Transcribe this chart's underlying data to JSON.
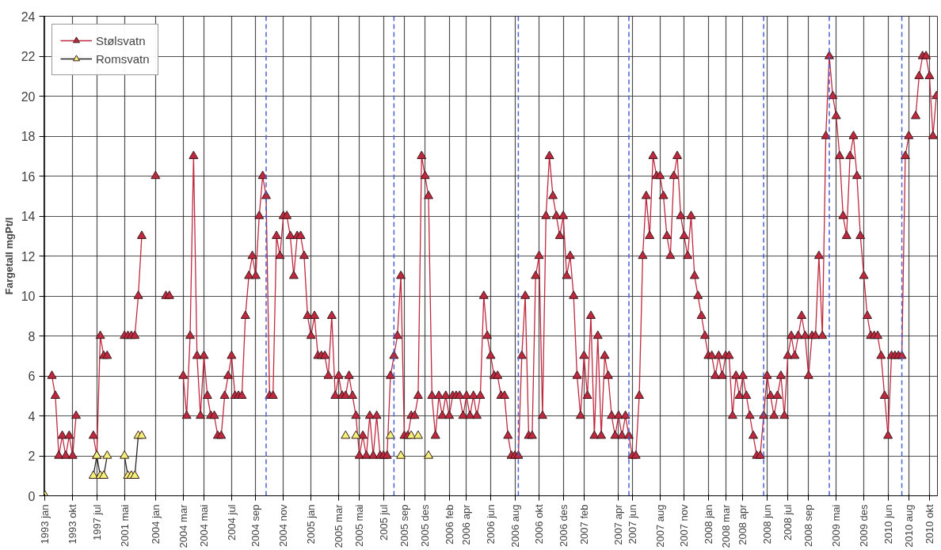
{
  "chart_data": {
    "type": "line",
    "ylabel": "Fargetall mgPt/l",
    "marker": "triangle",
    "grid": true,
    "legend": "top left",
    "ylim": [
      0,
      24
    ],
    "yticks": [
      0,
      2,
      4,
      6,
      8,
      10,
      12,
      14,
      16,
      18,
      20,
      22,
      24
    ],
    "categories": [
      "1993 jan",
      null,
      null,
      null,
      null,
      null,
      null,
      null,
      "1993 okt",
      null,
      null,
      null,
      null,
      null,
      null,
      "1997 jul",
      null,
      null,
      null,
      null,
      null,
      null,
      null,
      "2001 mai",
      null,
      null,
      null,
      null,
      null,
      null,
      null,
      null,
      "2004 jan",
      null,
      null,
      null,
      null,
      null,
      null,
      null,
      "2004 mar",
      null,
      null,
      null,
      null,
      null,
      "2004 mai",
      null,
      null,
      null,
      null,
      null,
      null,
      null,
      "2004 jul",
      null,
      null,
      null,
      null,
      null,
      null,
      "2004 sep",
      null,
      null,
      null,
      null,
      null,
      null,
      null,
      "2004 nov",
      null,
      null,
      null,
      null,
      null,
      null,
      null,
      "2005 jan",
      null,
      null,
      null,
      null,
      null,
      null,
      null,
      "2005 mar",
      null,
      null,
      null,
      null,
      null,
      "2005 mai",
      null,
      null,
      null,
      null,
      null,
      null,
      "2005 jul",
      null,
      null,
      null,
      null,
      null,
      "2005 sep",
      null,
      null,
      null,
      null,
      null,
      "2005 des",
      null,
      null,
      null,
      null,
      null,
      null,
      "2006 feb",
      null,
      null,
      null,
      null,
      "2006 apr",
      null,
      null,
      null,
      null,
      null,
      null,
      "2006 jun",
      null,
      null,
      null,
      null,
      null,
      null,
      "2006 aug",
      null,
      null,
      null,
      null,
      null,
      null,
      "2006 okt",
      null,
      null,
      null,
      null,
      null,
      null,
      "2006 des",
      null,
      null,
      null,
      null,
      null,
      "2007 feb",
      null,
      null,
      null,
      null,
      null,
      null,
      null,
      null,
      null,
      "2007 apr",
      null,
      null,
      null,
      "2007 jun",
      null,
      null,
      null,
      null,
      null,
      null,
      null,
      "2007 aug",
      null,
      null,
      null,
      null,
      null,
      null,
      "2007 nov",
      null,
      null,
      null,
      null,
      null,
      null,
      "2008 jan",
      null,
      null,
      null,
      null,
      "2008 mar",
      null,
      null,
      null,
      null,
      "2008 apr",
      null,
      null,
      null,
      null,
      null,
      null,
      "2008 jun",
      null,
      null,
      null,
      null,
      null,
      "2008 jul",
      null,
      null,
      null,
      null,
      null,
      "2008 sep",
      null,
      null,
      null,
      null,
      null,
      null,
      null,
      "2009 mai",
      null,
      null,
      null,
      null,
      null,
      null,
      null,
      "2009 des",
      null,
      null,
      null,
      null,
      null,
      null,
      "2010 jun",
      null,
      null,
      null,
      null,
      null,
      "2010 aug",
      null,
      null,
      null,
      null,
      null,
      "2010 okt",
      null,
      null
    ],
    "series": [
      {
        "name": "Stølsvatn",
        "color": "#c0283f",
        "values": [
          null,
          null,
          6,
          5,
          2,
          3,
          2,
          3,
          2,
          4,
          null,
          null,
          null,
          null,
          3,
          2,
          8,
          7,
          7,
          null,
          null,
          null,
          null,
          8,
          8,
          8,
          8,
          10,
          13,
          null,
          null,
          null,
          16,
          null,
          null,
          10,
          10,
          null,
          null,
          null,
          6,
          4,
          8,
          17,
          7,
          4,
          7,
          5,
          4,
          4,
          3,
          3,
          5,
          6,
          7,
          5,
          5,
          5,
          9,
          11,
          12,
          11,
          14,
          16,
          15,
          5,
          5,
          13,
          12,
          14,
          14,
          13,
          11,
          13,
          13,
          12,
          9,
          8,
          9,
          7,
          7,
          7,
          6,
          9,
          5,
          6,
          5,
          5,
          6,
          5,
          4,
          2,
          3,
          2,
          4,
          2,
          4,
          2,
          2,
          2,
          6,
          7,
          8,
          11,
          3,
          3,
          4,
          4,
          5,
          17,
          16,
          15,
          5,
          3,
          5,
          4,
          5,
          4,
          5,
          5,
          5,
          4,
          5,
          4,
          5,
          4,
          5,
          10,
          8,
          7,
          6,
          6,
          5,
          5,
          3,
          2,
          2,
          2,
          7,
          10,
          3,
          3,
          11,
          12,
          4,
          14,
          17,
          15,
          14,
          13,
          14,
          11,
          12,
          10,
          6,
          4,
          7,
          5,
          9,
          3,
          8,
          3,
          7,
          6,
          4,
          3,
          4,
          3,
          4,
          3,
          2,
          2,
          5,
          12,
          15,
          13,
          17,
          16,
          16,
          15,
          13,
          12,
          16,
          17,
          14,
          13,
          12,
          14,
          11,
          10,
          9,
          8,
          7,
          7,
          6,
          7,
          6,
          7,
          7,
          4,
          6,
          5,
          6,
          5,
          4,
          3,
          2,
          2,
          4,
          6,
          5,
          4,
          5,
          6,
          4,
          7,
          8,
          7,
          8,
          9,
          8,
          6,
          8,
          8,
          12,
          8,
          18,
          22,
          20,
          19,
          17,
          14,
          13,
          17,
          18,
          16,
          13,
          11,
          9,
          8,
          8,
          8,
          7,
          5,
          3,
          7,
          7,
          7,
          7,
          17,
          18,
          null,
          19,
          21,
          22,
          22,
          21,
          18,
          20
        ]
      },
      {
        "name": "Romsvatn",
        "color": "#f2f27a",
        "values": [
          0,
          null,
          null,
          null,
          null,
          null,
          null,
          null,
          null,
          null,
          null,
          null,
          null,
          null,
          1,
          2,
          1,
          1,
          2,
          null,
          null,
          null,
          null,
          2,
          1,
          1,
          1,
          3,
          3,
          null,
          null,
          null,
          null,
          null,
          null,
          null,
          null,
          null,
          null,
          null,
          null,
          null,
          null,
          null,
          null,
          null,
          null,
          null,
          null,
          null,
          null,
          null,
          null,
          null,
          null,
          null,
          null,
          null,
          null,
          null,
          null,
          null,
          null,
          null,
          null,
          null,
          null,
          null,
          null,
          null,
          null,
          null,
          null,
          null,
          null,
          null,
          null,
          null,
          null,
          null,
          null,
          null,
          null,
          null,
          null,
          null,
          null,
          3,
          null,
          null,
          3,
          null,
          null,
          null,
          null,
          null,
          null,
          null,
          null,
          null,
          3,
          null,
          null,
          2,
          null,
          null,
          3,
          null,
          3,
          null,
          null,
          2,
          null,
          null,
          null,
          null,
          null,
          null,
          null,
          null,
          null,
          null,
          null,
          null,
          null,
          null,
          null,
          null,
          null,
          null,
          null,
          null,
          null,
          null,
          null,
          null,
          null,
          null,
          null,
          null,
          null,
          null,
          null,
          null,
          null,
          null,
          null,
          null,
          null,
          null,
          null,
          null,
          null,
          null,
          null,
          null,
          null,
          null,
          null,
          null,
          null,
          null,
          null,
          null,
          null,
          null,
          null,
          null,
          null,
          null,
          null,
          null,
          null,
          null,
          null,
          null,
          null,
          null,
          null,
          null,
          null,
          null,
          null,
          null,
          null,
          null,
          null,
          null,
          null,
          null,
          null,
          null,
          null,
          null,
          null,
          null,
          null,
          null,
          null,
          null,
          null,
          null,
          null,
          null,
          null,
          null,
          null,
          null,
          null,
          null,
          null,
          null,
          null,
          null,
          null,
          null,
          null,
          null,
          null,
          null,
          null,
          null,
          null,
          null,
          null,
          null,
          null,
          null,
          null,
          null,
          null,
          null,
          null,
          null,
          null,
          null,
          null,
          null,
          null,
          null,
          null,
          null,
          null,
          null,
          null,
          null,
          null,
          null,
          null,
          null,
          null,
          null,
          null,
          null,
          null,
          null,
          null,
          null,
          null
        ]
      }
    ]
  }
}
